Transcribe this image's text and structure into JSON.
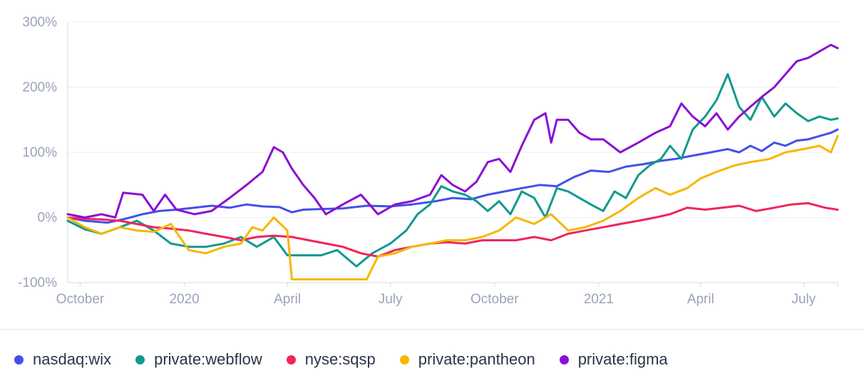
{
  "chart_data": {
    "type": "line",
    "y_unit": "percent",
    "ylim": [
      -100,
      300
    ],
    "yticks": [
      300,
      200,
      100,
      0,
      -100
    ],
    "ytick_labels": [
      "300%",
      "200%",
      "100%",
      "0%",
      "-100%"
    ],
    "xlim": [
      "2019-09-20",
      "2021-07-31"
    ],
    "xticks": [
      {
        "date": "2019-10-01",
        "label": "October"
      },
      {
        "date": "2020-01-01",
        "label": "2020"
      },
      {
        "date": "2020-04-01",
        "label": "April"
      },
      {
        "date": "2020-07-01",
        "label": "July"
      },
      {
        "date": "2020-10-01",
        "label": "October"
      },
      {
        "date": "2021-01-01",
        "label": "2021"
      },
      {
        "date": "2021-04-01",
        "label": "April"
      },
      {
        "date": "2021-07-01",
        "label": "July"
      }
    ],
    "grid": true,
    "legend_position": "bottom",
    "series": [
      {
        "name": "nasdaq:wix",
        "color": "#4350e8",
        "points": [
          [
            "2019-09-20",
            0
          ],
          [
            "2019-10-05",
            -5
          ],
          [
            "2019-10-25",
            -8
          ],
          [
            "2019-11-10",
            -2
          ],
          [
            "2019-11-25",
            5
          ],
          [
            "2019-12-10",
            10
          ],
          [
            "2019-12-25",
            12
          ],
          [
            "2020-01-10",
            15
          ],
          [
            "2020-01-25",
            18
          ],
          [
            "2020-02-10",
            15
          ],
          [
            "2020-02-25",
            20
          ],
          [
            "2020-03-10",
            17
          ],
          [
            "2020-03-25",
            16
          ],
          [
            "2020-04-05",
            8
          ],
          [
            "2020-04-15",
            12
          ],
          [
            "2020-05-01",
            13
          ],
          [
            "2020-05-20",
            14
          ],
          [
            "2020-06-10",
            18
          ],
          [
            "2020-07-01",
            17
          ],
          [
            "2020-07-20",
            20
          ],
          [
            "2020-08-10",
            25
          ],
          [
            "2020-08-25",
            30
          ],
          [
            "2020-09-10",
            28
          ],
          [
            "2020-09-25",
            35
          ],
          [
            "2020-10-10",
            40
          ],
          [
            "2020-10-25",
            45
          ],
          [
            "2020-11-10",
            50
          ],
          [
            "2020-11-25",
            48
          ],
          [
            "2020-12-10",
            62
          ],
          [
            "2020-12-25",
            72
          ],
          [
            "2021-01-10",
            70
          ],
          [
            "2021-01-25",
            78
          ],
          [
            "2021-02-10",
            82
          ],
          [
            "2021-02-25",
            87
          ],
          [
            "2021-03-10",
            90
          ],
          [
            "2021-03-25",
            95
          ],
          [
            "2021-04-10",
            100
          ],
          [
            "2021-04-25",
            105
          ],
          [
            "2021-05-05",
            100
          ],
          [
            "2021-05-15",
            110
          ],
          [
            "2021-05-25",
            102
          ],
          [
            "2021-06-05",
            115
          ],
          [
            "2021-06-15",
            110
          ],
          [
            "2021-06-25",
            118
          ],
          [
            "2021-07-05",
            120
          ],
          [
            "2021-07-15",
            125
          ],
          [
            "2021-07-25",
            130
          ],
          [
            "2021-07-31",
            135
          ]
        ]
      },
      {
        "name": "private:webflow",
        "color": "#11998e",
        "points": [
          [
            "2019-09-20",
            -5
          ],
          [
            "2019-10-05",
            -18
          ],
          [
            "2019-10-20",
            -25
          ],
          [
            "2019-11-05",
            -15
          ],
          [
            "2019-11-20",
            -5
          ],
          [
            "2019-12-05",
            -20
          ],
          [
            "2019-12-20",
            -40
          ],
          [
            "2020-01-05",
            -45
          ],
          [
            "2020-01-20",
            -45
          ],
          [
            "2020-02-05",
            -40
          ],
          [
            "2020-02-20",
            -30
          ],
          [
            "2020-03-05",
            -45
          ],
          [
            "2020-03-20",
            -30
          ],
          [
            "2020-04-01",
            -58
          ],
          [
            "2020-04-15",
            -58
          ],
          [
            "2020-05-01",
            -58
          ],
          [
            "2020-05-15",
            -50
          ],
          [
            "2020-06-01",
            -75
          ],
          [
            "2020-06-15",
            -55
          ],
          [
            "2020-07-01",
            -40
          ],
          [
            "2020-07-15",
            -20
          ],
          [
            "2020-07-25",
            5
          ],
          [
            "2020-08-05",
            20
          ],
          [
            "2020-08-15",
            48
          ],
          [
            "2020-08-25",
            40
          ],
          [
            "2020-09-05",
            35
          ],
          [
            "2020-09-15",
            25
          ],
          [
            "2020-09-25",
            10
          ],
          [
            "2020-10-05",
            25
          ],
          [
            "2020-10-15",
            5
          ],
          [
            "2020-10-25",
            40
          ],
          [
            "2020-11-05",
            30
          ],
          [
            "2020-11-15",
            0
          ],
          [
            "2020-11-25",
            45
          ],
          [
            "2020-12-05",
            40
          ],
          [
            "2020-12-15",
            30
          ],
          [
            "2020-12-25",
            20
          ],
          [
            "2021-01-05",
            10
          ],
          [
            "2021-01-15",
            40
          ],
          [
            "2021-01-25",
            30
          ],
          [
            "2021-02-05",
            65
          ],
          [
            "2021-02-15",
            80
          ],
          [
            "2021-02-25",
            90
          ],
          [
            "2021-03-05",
            110
          ],
          [
            "2021-03-15",
            90
          ],
          [
            "2021-03-25",
            135
          ],
          [
            "2021-04-05",
            155
          ],
          [
            "2021-04-15",
            180
          ],
          [
            "2021-04-25",
            220
          ],
          [
            "2021-05-05",
            170
          ],
          [
            "2021-05-15",
            150
          ],
          [
            "2021-05-25",
            185
          ],
          [
            "2021-06-05",
            155
          ],
          [
            "2021-06-15",
            175
          ],
          [
            "2021-06-25",
            160
          ],
          [
            "2021-07-05",
            148
          ],
          [
            "2021-07-15",
            155
          ],
          [
            "2021-07-25",
            150
          ],
          [
            "2021-07-31",
            152
          ]
        ]
      },
      {
        "name": "nyse:sqsp",
        "color": "#f0255a",
        "points": [
          [
            "2019-09-20",
            0
          ],
          [
            "2019-10-05",
            -2
          ],
          [
            "2019-10-20",
            -3
          ],
          [
            "2019-11-05",
            -5
          ],
          [
            "2019-11-20",
            -10
          ],
          [
            "2019-12-05",
            -15
          ],
          [
            "2019-12-20",
            -17
          ],
          [
            "2020-01-05",
            -20
          ],
          [
            "2020-01-20",
            -25
          ],
          [
            "2020-02-05",
            -30
          ],
          [
            "2020-02-20",
            -35
          ],
          [
            "2020-03-05",
            -30
          ],
          [
            "2020-03-20",
            -28
          ],
          [
            "2020-04-05",
            -30
          ],
          [
            "2020-04-20",
            -35
          ],
          [
            "2020-05-05",
            -40
          ],
          [
            "2020-05-20",
            -45
          ],
          [
            "2020-06-05",
            -55
          ],
          [
            "2020-06-20",
            -60
          ],
          [
            "2020-07-05",
            -50
          ],
          [
            "2020-07-20",
            -45
          ],
          [
            "2020-08-05",
            -40
          ],
          [
            "2020-08-20",
            -38
          ],
          [
            "2020-09-05",
            -40
          ],
          [
            "2020-09-20",
            -35
          ],
          [
            "2020-10-05",
            -35
          ],
          [
            "2020-10-20",
            -35
          ],
          [
            "2020-11-05",
            -30
          ],
          [
            "2020-11-20",
            -35
          ],
          [
            "2020-12-05",
            -25
          ],
          [
            "2020-12-20",
            -20
          ],
          [
            "2021-01-05",
            -15
          ],
          [
            "2021-01-20",
            -10
          ],
          [
            "2021-02-05",
            -5
          ],
          [
            "2021-02-20",
            0
          ],
          [
            "2021-03-05",
            5
          ],
          [
            "2021-03-20",
            15
          ],
          [
            "2021-04-05",
            12
          ],
          [
            "2021-04-20",
            15
          ],
          [
            "2021-05-05",
            18
          ],
          [
            "2021-05-20",
            10
          ],
          [
            "2021-06-05",
            15
          ],
          [
            "2021-06-20",
            20
          ],
          [
            "2021-07-05",
            22
          ],
          [
            "2021-07-20",
            15
          ],
          [
            "2021-07-31",
            12
          ]
        ]
      },
      {
        "name": "private:pantheon",
        "color": "#f5b700",
        "points": [
          [
            "2019-09-20",
            0
          ],
          [
            "2019-10-05",
            -15
          ],
          [
            "2019-10-20",
            -25
          ],
          [
            "2019-11-05",
            -15
          ],
          [
            "2019-11-20",
            -20
          ],
          [
            "2019-12-05",
            -22
          ],
          [
            "2019-12-20",
            -10
          ],
          [
            "2020-01-05",
            -50
          ],
          [
            "2020-01-20",
            -55
          ],
          [
            "2020-02-05",
            -45
          ],
          [
            "2020-02-20",
            -40
          ],
          [
            "2020-03-01",
            -15
          ],
          [
            "2020-03-10",
            -20
          ],
          [
            "2020-03-20",
            0
          ],
          [
            "2020-04-01",
            -20
          ],
          [
            "2020-04-05",
            -95
          ],
          [
            "2020-04-20",
            -95
          ],
          [
            "2020-05-05",
            -95
          ],
          [
            "2020-05-20",
            -95
          ],
          [
            "2020-06-10",
            -95
          ],
          [
            "2020-06-20",
            -60
          ],
          [
            "2020-07-05",
            -55
          ],
          [
            "2020-07-20",
            -45
          ],
          [
            "2020-08-05",
            -40
          ],
          [
            "2020-08-20",
            -35
          ],
          [
            "2020-09-05",
            -35
          ],
          [
            "2020-09-20",
            -30
          ],
          [
            "2020-10-05",
            -20
          ],
          [
            "2020-10-20",
            0
          ],
          [
            "2020-11-05",
            -10
          ],
          [
            "2020-11-20",
            5
          ],
          [
            "2020-12-05",
            -20
          ],
          [
            "2020-12-20",
            -15
          ],
          [
            "2021-01-05",
            -5
          ],
          [
            "2021-01-20",
            10
          ],
          [
            "2021-02-05",
            30
          ],
          [
            "2021-02-20",
            45
          ],
          [
            "2021-03-05",
            35
          ],
          [
            "2021-03-20",
            45
          ],
          [
            "2021-04-01",
            60
          ],
          [
            "2021-04-15",
            70
          ],
          [
            "2021-05-01",
            80
          ],
          [
            "2021-05-15",
            85
          ],
          [
            "2021-06-01",
            90
          ],
          [
            "2021-06-15",
            100
          ],
          [
            "2021-07-01",
            105
          ],
          [
            "2021-07-15",
            110
          ],
          [
            "2021-07-25",
            100
          ],
          [
            "2021-07-31",
            125
          ]
        ]
      },
      {
        "name": "private:figma",
        "color": "#8a0fd4",
        "points": [
          [
            "2019-09-20",
            5
          ],
          [
            "2019-10-05",
            0
          ],
          [
            "2019-10-20",
            5
          ],
          [
            "2019-11-01",
            0
          ],
          [
            "2019-11-08",
            38
          ],
          [
            "2019-11-25",
            35
          ],
          [
            "2019-12-05",
            10
          ],
          [
            "2019-12-15",
            35
          ],
          [
            "2019-12-25",
            12
          ],
          [
            "2020-01-10",
            5
          ],
          [
            "2020-01-25",
            10
          ],
          [
            "2020-02-10",
            30
          ],
          [
            "2020-02-25",
            50
          ],
          [
            "2020-03-10",
            70
          ],
          [
            "2020-03-20",
            108
          ],
          [
            "2020-03-28",
            100
          ],
          [
            "2020-04-05",
            75
          ],
          [
            "2020-04-15",
            50
          ],
          [
            "2020-04-25",
            30
          ],
          [
            "2020-05-05",
            5
          ],
          [
            "2020-05-20",
            20
          ],
          [
            "2020-06-05",
            35
          ],
          [
            "2020-06-20",
            5
          ],
          [
            "2020-07-05",
            20
          ],
          [
            "2020-07-20",
            25
          ],
          [
            "2020-08-05",
            35
          ],
          [
            "2020-08-15",
            65
          ],
          [
            "2020-08-25",
            50
          ],
          [
            "2020-09-05",
            40
          ],
          [
            "2020-09-15",
            55
          ],
          [
            "2020-09-25",
            85
          ],
          [
            "2020-10-05",
            90
          ],
          [
            "2020-10-15",
            70
          ],
          [
            "2020-10-25",
            110
          ],
          [
            "2020-11-05",
            150
          ],
          [
            "2020-11-15",
            160
          ],
          [
            "2020-11-20",
            115
          ],
          [
            "2020-11-25",
            150
          ],
          [
            "2020-12-05",
            150
          ],
          [
            "2020-12-15",
            130
          ],
          [
            "2020-12-25",
            120
          ],
          [
            "2021-01-05",
            120
          ],
          [
            "2021-01-20",
            100
          ],
          [
            "2021-02-05",
            115
          ],
          [
            "2021-02-20",
            130
          ],
          [
            "2021-03-05",
            140
          ],
          [
            "2021-03-15",
            175
          ],
          [
            "2021-03-25",
            155
          ],
          [
            "2021-04-05",
            140
          ],
          [
            "2021-04-15",
            160
          ],
          [
            "2021-04-25",
            135
          ],
          [
            "2021-05-05",
            155
          ],
          [
            "2021-05-15",
            170
          ],
          [
            "2021-05-25",
            185
          ],
          [
            "2021-06-05",
            200
          ],
          [
            "2021-06-15",
            220
          ],
          [
            "2021-06-25",
            240
          ],
          [
            "2021-07-05",
            245
          ],
          [
            "2021-07-15",
            255
          ],
          [
            "2021-07-25",
            265
          ],
          [
            "2021-07-31",
            260
          ]
        ]
      }
    ]
  }
}
